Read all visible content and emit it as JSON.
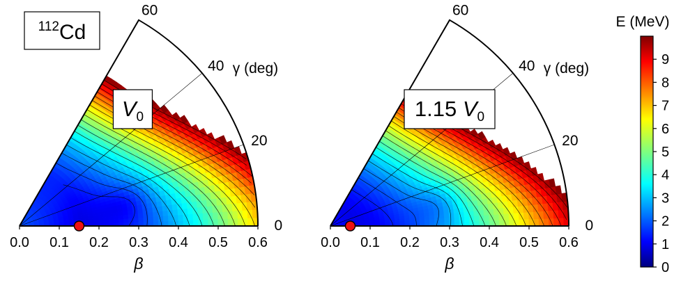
{
  "nucleus_label": {
    "mass": "112",
    "symbol": "Cd"
  },
  "chart_data": [
    {
      "type": "heatmap",
      "projection": "beta-gamma sector (polar)",
      "panel_label": {
        "prefix": "",
        "symbol": "V",
        "subscript": "0"
      },
      "xlabel": "β",
      "gamma_label": "γ (deg)",
      "xlim": [
        0.0,
        0.6
      ],
      "gamma_range": [
        0,
        60
      ],
      "xticks": [
        "0.0",
        "0.1",
        "0.2",
        "0.3",
        "0.4",
        "0.5",
        "0.6"
      ],
      "gamma_ticks": [
        "0",
        "20",
        "40",
        "60"
      ],
      "minimum": {
        "beta": 0.15,
        "gamma": 0
      },
      "contour_step": 0.5,
      "energy_landscape": {
        "description_units": "MeV",
        "valley_beta": 0.15,
        "saturation": 10
      }
    },
    {
      "type": "heatmap",
      "projection": "beta-gamma sector (polar)",
      "panel_label": {
        "prefix": "1.15 ",
        "symbol": "V",
        "subscript": "0"
      },
      "xlabel": "β",
      "gamma_label": "γ (deg)",
      "xlim": [
        0.0,
        0.6
      ],
      "gamma_range": [
        0,
        60
      ],
      "xticks": [
        "0.0",
        "0.1",
        "0.2",
        "0.3",
        "0.4",
        "0.5",
        "0.6"
      ],
      "gamma_ticks": [
        "0",
        "20",
        "40",
        "60"
      ],
      "minimum": {
        "beta": 0.05,
        "gamma": 0
      },
      "contour_step": 0.5,
      "energy_landscape": {
        "description_units": "MeV",
        "valley_beta": 0.05,
        "saturation": 10
      }
    }
  ],
  "colorbar": {
    "title": "E (MeV)",
    "range": [
      0,
      10
    ],
    "ticks": [
      "0",
      "1",
      "2",
      "3",
      "4",
      "5",
      "6",
      "7",
      "8",
      "9"
    ],
    "colormap": "jet"
  },
  "colors": {
    "minimum_marker": "#ee1111",
    "axis": "#000000"
  }
}
